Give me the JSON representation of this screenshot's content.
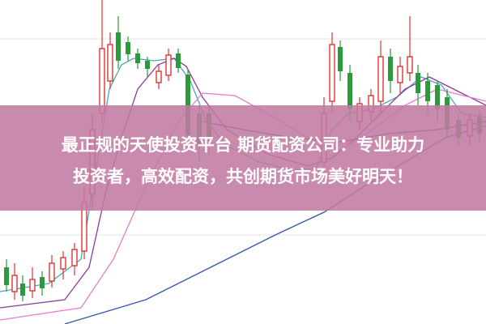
{
  "banner": {
    "lines": [
      "最正规的天使投资平台 期货配资公司：专业助力",
      "投资者，高效配资，共创期货市场美好明天！"
    ]
  }
}
